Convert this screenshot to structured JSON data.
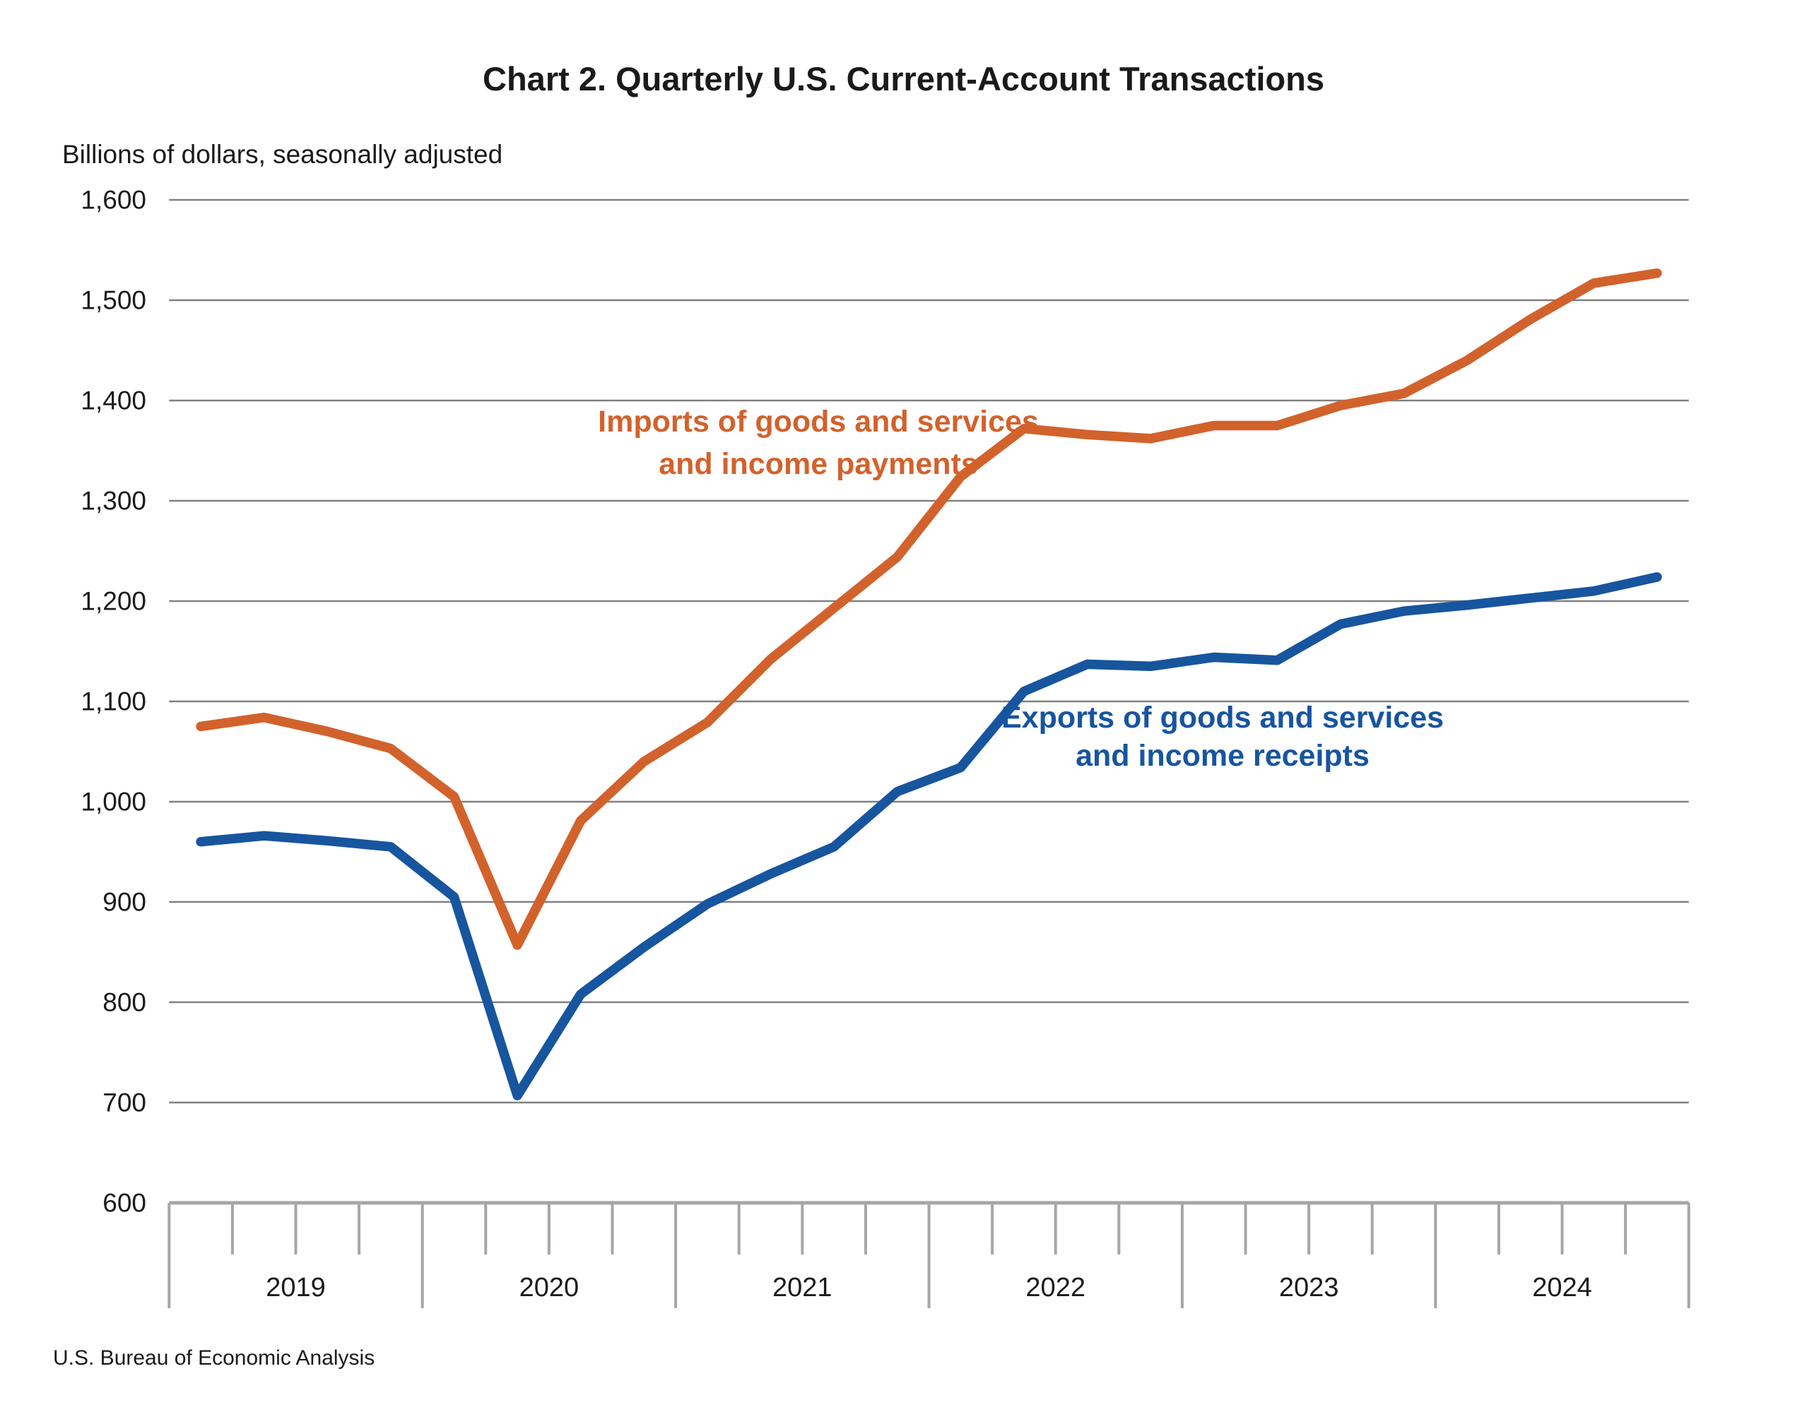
{
  "page": {
    "title": "Chart 2. Quarterly U.S. Current-Account Transactions",
    "subtitle": "Billions of dollars, seasonally adjusted",
    "source": "U.S. Bureau of Economic Analysis"
  },
  "colors": {
    "imports_line": "#d2622c",
    "exports_line": "#17559f",
    "gridline": "#808080",
    "axis": "#a6a6a6",
    "text": "#1a1a1a"
  },
  "chart_data": {
    "type": "line",
    "title": "Chart 2. Quarterly U.S. Current-Account Transactions",
    "unit_note": "Billions of dollars, seasonally adjusted",
    "source": "U.S. Bureau of Economic Analysis",
    "xlabel": "",
    "ylabel": "Billions of dollars",
    "ylim": [
      600,
      1600
    ],
    "ytick_step": 100,
    "yticks": [
      {
        "value": 1600,
        "label": "1,600"
      },
      {
        "value": 1500,
        "label": "1,500"
      },
      {
        "value": 1400,
        "label": "1,400"
      },
      {
        "value": 1300,
        "label": "1,300"
      },
      {
        "value": 1200,
        "label": "1,200"
      },
      {
        "value": 1100,
        "label": "1,100"
      },
      {
        "value": 1000,
        "label": "1,000"
      },
      {
        "value": 900,
        "label": "900"
      },
      {
        "value": 800,
        "label": "800"
      },
      {
        "value": 700,
        "label": "700"
      },
      {
        "value": 600,
        "label": "600"
      }
    ],
    "years": [
      "2019",
      "2020",
      "2021",
      "2022",
      "2023",
      "2024"
    ],
    "quarters": [
      "2019 Q1",
      "2019 Q2",
      "2019 Q3",
      "2019 Q4",
      "2020 Q1",
      "2020 Q2",
      "2020 Q3",
      "2020 Q4",
      "2021 Q1",
      "2021 Q2",
      "2021 Q3",
      "2021 Q4",
      "2022 Q1",
      "2022 Q2",
      "2022 Q3",
      "2022 Q4",
      "2023 Q1",
      "2023 Q2",
      "2023 Q3",
      "2023 Q4",
      "2024 Q1",
      "2024 Q2",
      "2024 Q3",
      "2024 Q4"
    ],
    "grid": true,
    "legend_position": "inline-annotations",
    "series": [
      {
        "name": "Imports of goods and services and income payments",
        "legend_line1": "Imports of goods and services",
        "legend_line2": "and income payments",
        "color": "#d2622c",
        "values": [
          1075,
          1084,
          1070,
          1053,
          1005,
          857,
          981,
          1040,
          1079,
          1142,
          1193,
          1244,
          1324,
          1372,
          1366,
          1362,
          1375,
          1375,
          1395,
          1407,
          1440,
          1481,
          1517,
          1527
        ]
      },
      {
        "name": "Exports of goods and services and income receipts",
        "legend_line1": "Exports of goods and services",
        "legend_line2": "and income receipts",
        "color": "#17559f",
        "values": [
          960,
          966,
          961,
          955,
          905,
          707,
          808,
          855,
          898,
          928,
          955,
          1010,
          1034,
          1110,
          1137,
          1135,
          1144,
          1141,
          1177,
          1190,
          1196,
          1203,
          1210,
          1224
        ]
      }
    ]
  }
}
